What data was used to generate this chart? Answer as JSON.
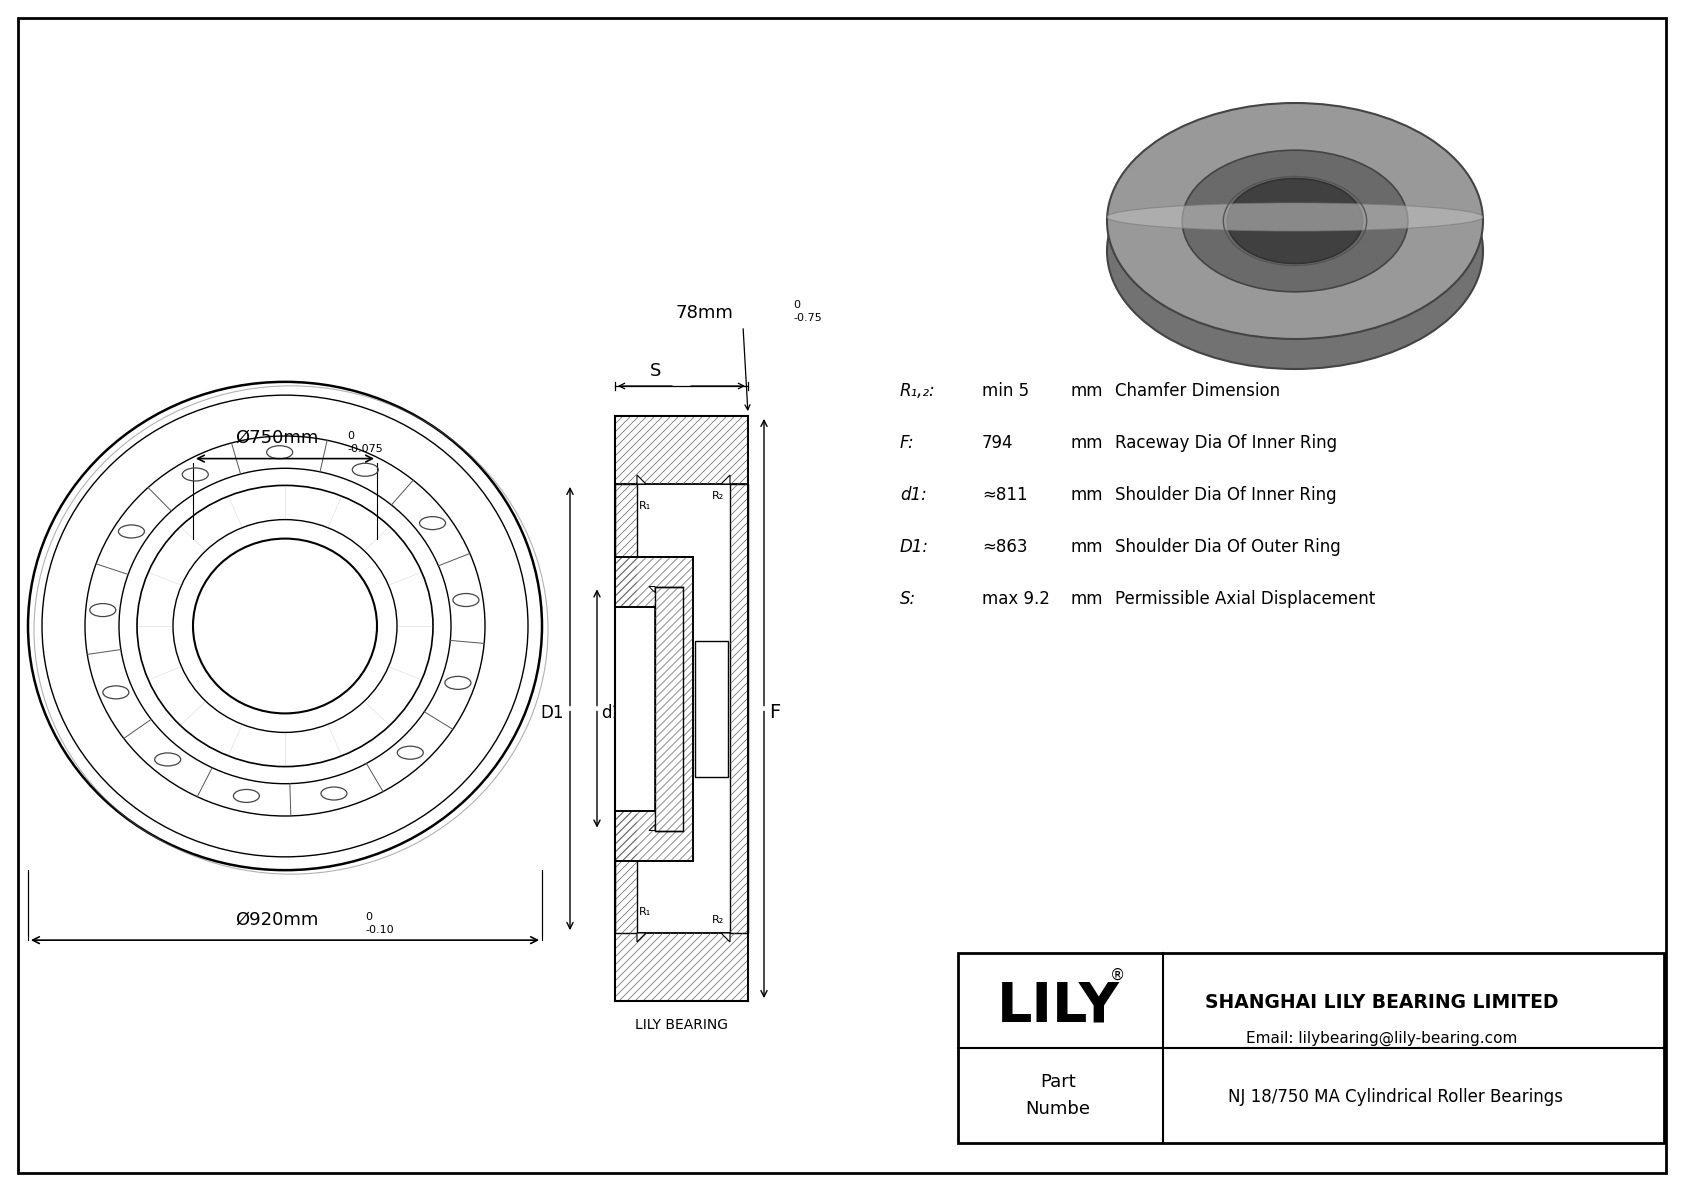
{
  "bg_color": "#ffffff",
  "lc": "#000000",
  "title_company": "SHANGHAI LILY BEARING LIMITED",
  "title_email": "Email: lilybearing@lily-bearing.com",
  "title_logo": "LILY",
  "logo_reg": "®",
  "part_label": "Part\nNumbe",
  "part_name": "NJ 18/750 MA Cylindrical Roller Bearings",
  "lily_bearing_label": "LILY BEARING",
  "dim_outer_text": "Ø920mm",
  "dim_outer_sup": "0",
  "dim_outer_sub": "-0.10",
  "dim_inner_text": "Ø750mm",
  "dim_inner_sup": "0",
  "dim_inner_sub": "-0.075",
  "dim_width_text": "78mm",
  "dim_width_sup": "0",
  "dim_width_sub": "-0.75",
  "label_S": "S",
  "label_R1": "R₁",
  "label_R2": "R₂",
  "label_D1": "D1",
  "label_d1": "d1",
  "label_F": "F",
  "specs": [
    {
      "label": "R₁,₂:",
      "val": "min 5",
      "unit": "mm",
      "desc": "Chamfer Dimension"
    },
    {
      "label": "F:",
      "val": "794",
      "unit": "mm",
      "desc": "Raceway Dia Of Inner Ring"
    },
    {
      "label": "d1:",
      "val": "≈811",
      "unit": "mm",
      "desc": "Shoulder Dia Of Inner Ring"
    },
    {
      "label": "D1:",
      "val": "≈863",
      "unit": "mm",
      "desc": "Shoulder Dia Of Outer Ring"
    },
    {
      "label": "S:",
      "val": "max 9.2",
      "unit": "mm",
      "desc": "Permissible Axial Displacement"
    }
  ],
  "hatch_color": "#555555",
  "gray3d_outer": "#8a8a8a",
  "gray3d_mid": "#666666",
  "gray3d_inner": "#4a4a4a",
  "gray3d_bore": "#383838",
  "gray3d_top": "#aaaaaa",
  "gray3d_edge": "#333333"
}
